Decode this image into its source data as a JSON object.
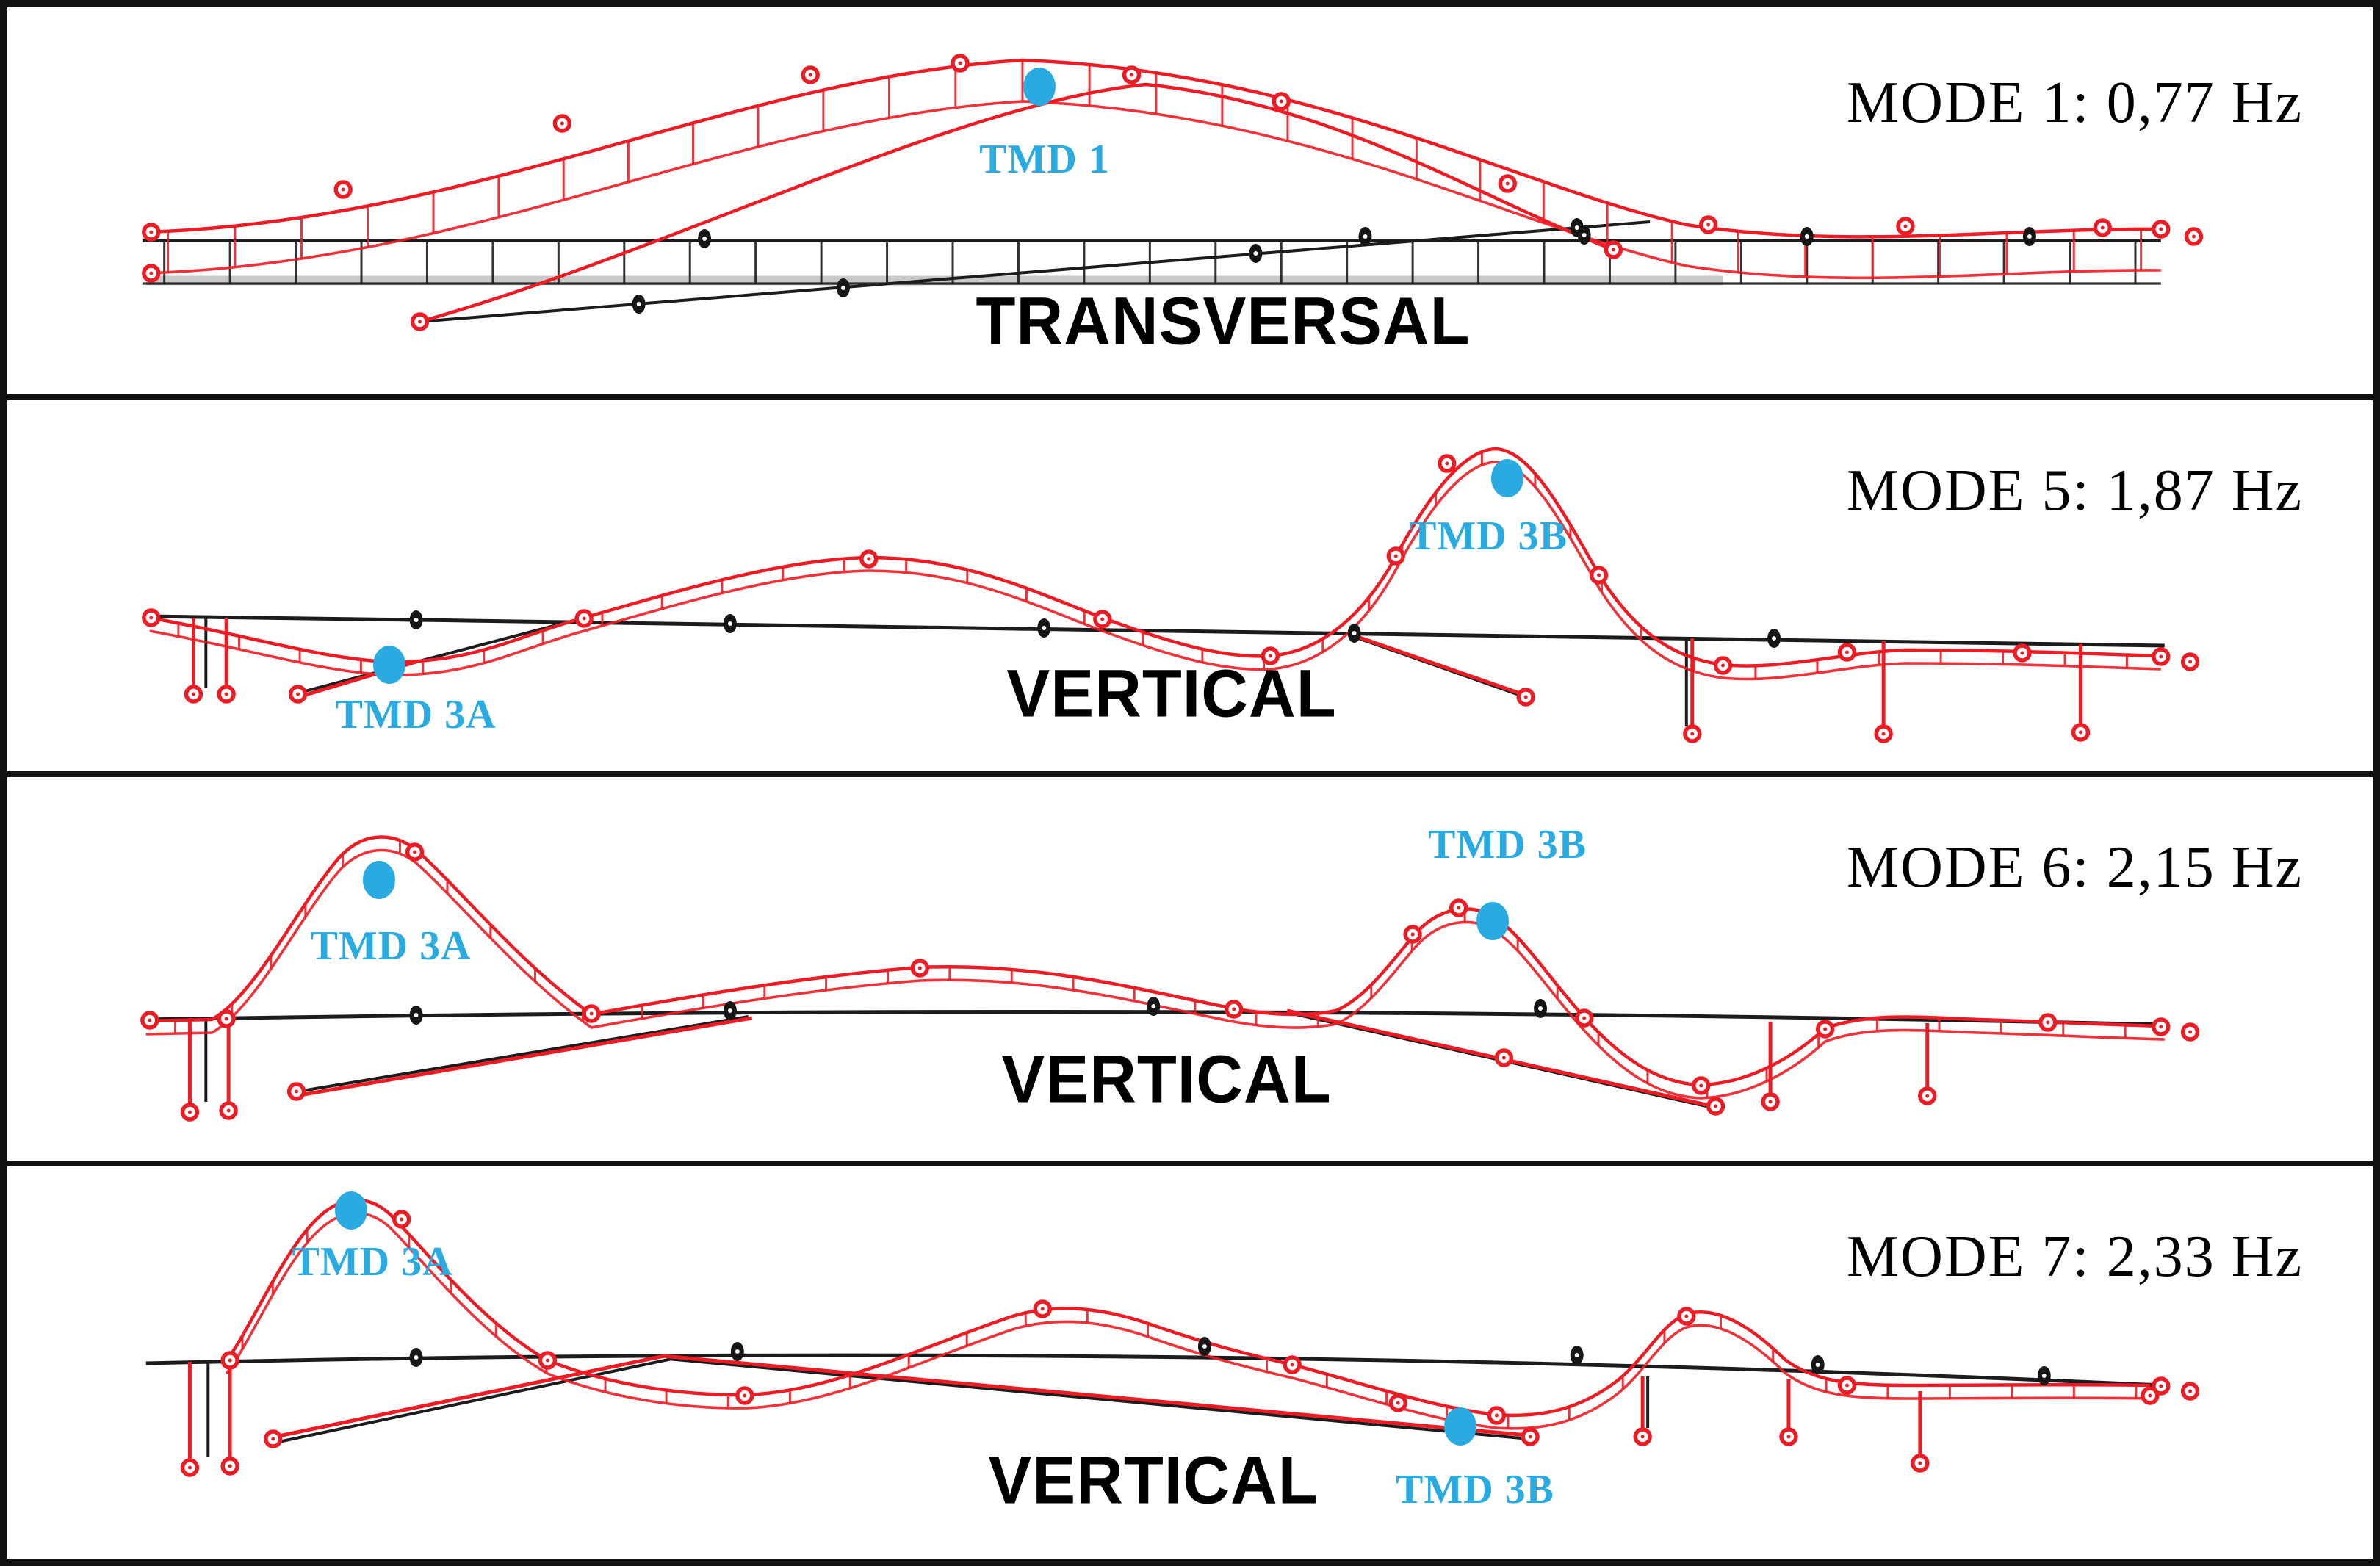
{
  "figure": {
    "description": "Mode shapes of footbridge finite element model with TMD positions",
    "colors": {
      "deformed_shape": "#ed1c24",
      "undeformed_shape": "#1a1a1a",
      "tmd_marker": "#29abe2",
      "text": "#000000"
    }
  },
  "panels": [
    {
      "mode_number": "1",
      "frequency": "0,77 Hz",
      "mode_label": "MODE 1: 0,77 Hz",
      "direction_label": "TRANSVERSAL",
      "tmd_markers": [
        {
          "label": "TMD 1"
        }
      ]
    },
    {
      "mode_number": "5",
      "frequency": "1,87 Hz",
      "mode_label": "MODE 5: 1,87 Hz",
      "direction_label": "VERTICAL",
      "tmd_markers": [
        {
          "label": "TMD 3A"
        },
        {
          "label": "TMD 3B"
        }
      ]
    },
    {
      "mode_number": "6",
      "frequency": "2,15 Hz",
      "mode_label": "MODE 6: 2,15 Hz",
      "direction_label": "VERTICAL",
      "tmd_markers": [
        {
          "label": "TMD 3A"
        },
        {
          "label": "TMD 3B"
        }
      ]
    },
    {
      "mode_number": "7",
      "frequency": "2,33 Hz",
      "mode_label": "MODE 7: 2,33 Hz",
      "direction_label": "VERTICAL",
      "tmd_markers": [
        {
          "label": "TMD 3A"
        },
        {
          "label": "TMD 3B"
        }
      ]
    }
  ]
}
